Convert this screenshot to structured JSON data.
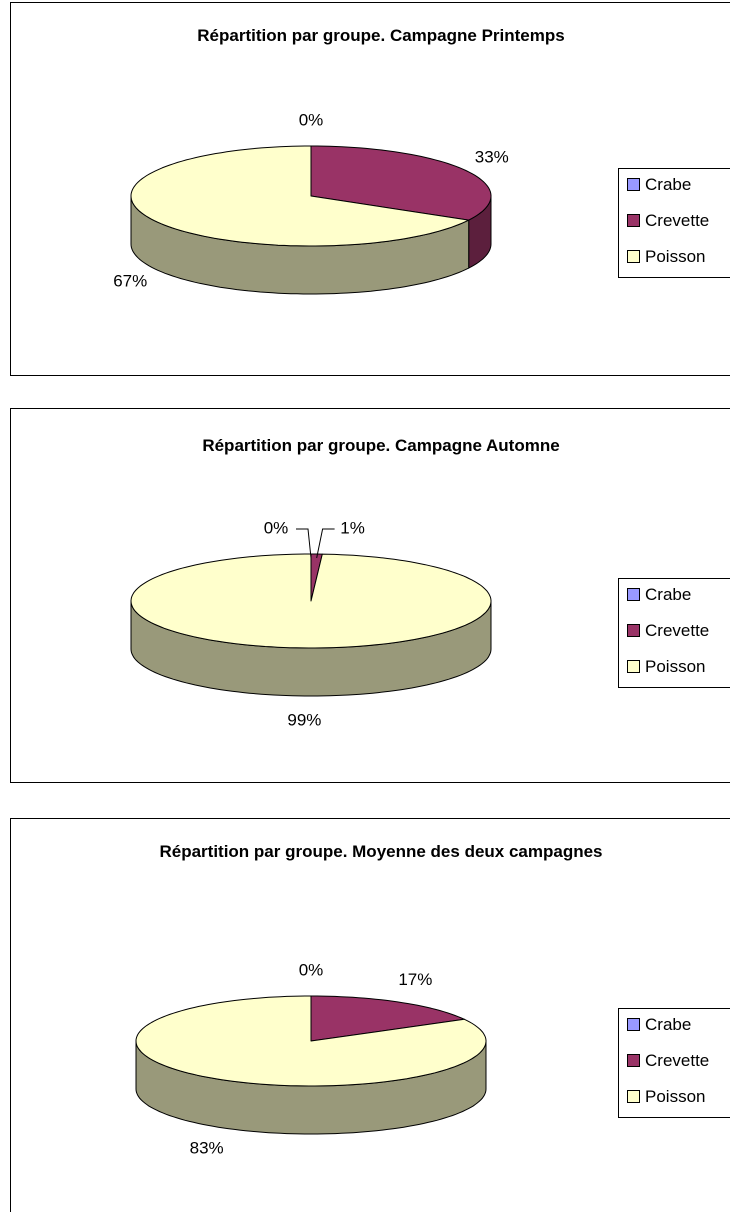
{
  "chart_data": [
    {
      "type": "pie3d",
      "title": "Répartition par groupe. Campagne Printemps",
      "categories": [
        "Crabe",
        "Crevette",
        "Poisson"
      ],
      "values": [
        0,
        33,
        67
      ],
      "value_labels": [
        "0%",
        "33%",
        "67%"
      ],
      "colors": [
        "#9999ff",
        "#993366",
        "#ffffcc"
      ],
      "legend": "right"
    },
    {
      "type": "pie3d",
      "title": "Répartition par groupe. Campagne Automne",
      "categories": [
        "Crabe",
        "Crevette",
        "Poisson"
      ],
      "values": [
        0,
        1,
        99
      ],
      "value_labels": [
        "0%",
        "1%",
        "99%"
      ],
      "colors": [
        "#9999ff",
        "#993366",
        "#ffffcc"
      ],
      "legend": "right"
    },
    {
      "type": "pie3d",
      "title": "Répartition par groupe. Moyenne des deux campagnes",
      "categories": [
        "Crabe",
        "Crevette",
        "Poisson"
      ],
      "values": [
        0,
        17,
        83
      ],
      "value_labels": [
        "0%",
        "17%",
        "83%"
      ],
      "colors": [
        "#9999ff",
        "#993366",
        "#ffffcc"
      ],
      "legend": "right"
    }
  ]
}
